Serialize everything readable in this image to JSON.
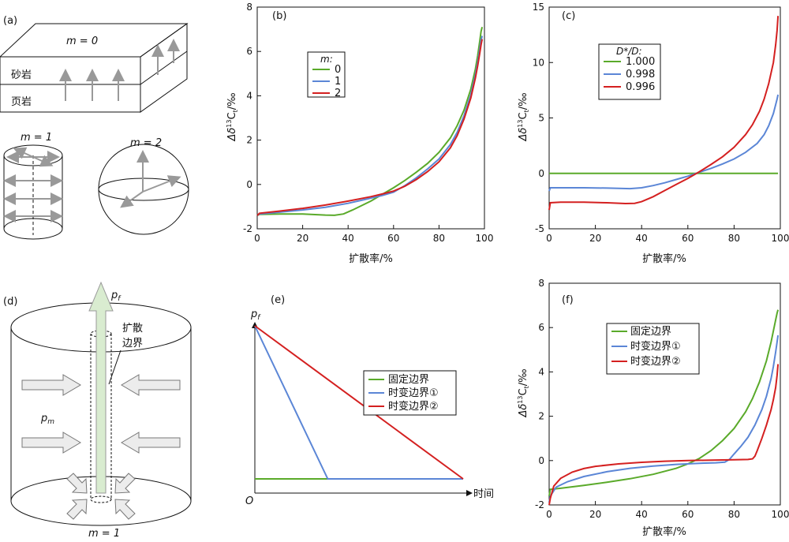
{
  "panels": {
    "a": {
      "label": "(a)",
      "m0": "m = 0",
      "m1": "m = 1",
      "m2": "m = 2",
      "sandstone": "砂岩",
      "shale": "页岩"
    },
    "b": {
      "label": "(b)",
      "ylabel_sym": "Δδ",
      "ylabel_sup": "13",
      "ylabel_c": "C",
      "ylabel_sub": "t",
      "ylabel_unit": "/‰",
      "xlabel": "扩散率/%",
      "legend_title": "m:"
    },
    "c": {
      "label": "(c)",
      "ylabel_sym": "Δδ",
      "ylabel_sup": "13",
      "ylabel_c": "C",
      "ylabel_sub": "t",
      "ylabel_unit": "/‰",
      "xlabel": "扩散率/%",
      "legend_title": "D*/D:"
    },
    "d": {
      "label": "(d)",
      "pf": "p",
      "pf_sub": "f",
      "pm": "p",
      "pm_sub": "m",
      "boundary1": "扩散",
      "boundary2": "边界",
      "m1": "m = 1"
    },
    "e": {
      "label": "(e)",
      "ylabel": "p",
      "ylabel_sub": "f",
      "xlabel": "时间",
      "origin": "O"
    },
    "f": {
      "label": "(f)",
      "ylabel_sym": "Δδ",
      "ylabel_sup": "13",
      "ylabel_c": "C",
      "ylabel_sub": "t",
      "ylabel_unit": "/‰",
      "xlabel": "扩散率/%"
    }
  },
  "colors": {
    "green": "#5aaa2a",
    "blue": "#5b86d6",
    "red": "#d42020"
  },
  "chart_data": [
    {
      "id": "b",
      "type": "line",
      "xlabel": "扩散率/%",
      "ylabel": "Δδ13Ct/‰",
      "xlim": [
        0,
        100
      ],
      "ylim": [
        -2,
        8
      ],
      "xticks": [
        0,
        20,
        40,
        60,
        80,
        100
      ],
      "yticks": [
        -2,
        0,
        2,
        4,
        6,
        8
      ],
      "legend_title": "m:",
      "series": [
        {
          "name": "0",
          "color": "#5aaa2a",
          "x": [
            0,
            1,
            10,
            20,
            30,
            34,
            38,
            42,
            46,
            50,
            55,
            60,
            65,
            70,
            75,
            80,
            85,
            88,
            91,
            94,
            96,
            97,
            98,
            98.5,
            99
          ],
          "y": [
            -1.4,
            -1.35,
            -1.33,
            -1.33,
            -1.38,
            -1.39,
            -1.33,
            -1.15,
            -0.95,
            -0.75,
            -0.45,
            -0.15,
            0.18,
            0.55,
            0.95,
            1.45,
            2.1,
            2.65,
            3.35,
            4.3,
            5.2,
            5.8,
            6.5,
            6.9,
            7.1
          ]
        },
        {
          "name": "1",
          "color": "#5b86d6",
          "x": [
            0,
            1,
            10,
            20,
            30,
            40,
            50,
            55,
            60,
            65,
            70,
            75,
            80,
            85,
            88,
            91,
            94,
            96,
            97,
            98,
            98.5,
            99
          ],
          "y": [
            -1.4,
            -1.33,
            -1.25,
            -1.15,
            -1.03,
            -0.85,
            -0.62,
            -0.5,
            -0.35,
            -0.05,
            0.3,
            0.7,
            1.15,
            1.8,
            2.35,
            3.1,
            4.05,
            4.95,
            5.5,
            6.15,
            6.5,
            6.7
          ]
        },
        {
          "name": "2",
          "color": "#d42020",
          "x": [
            0,
            1,
            10,
            20,
            30,
            40,
            50,
            55,
            60,
            65,
            70,
            75,
            80,
            85,
            88,
            91,
            94,
            96,
            97,
            98,
            98.5,
            99
          ],
          "y": [
            -1.4,
            -1.3,
            -1.2,
            -1.08,
            -0.93,
            -0.75,
            -0.55,
            -0.43,
            -0.3,
            -0.08,
            0.22,
            0.58,
            1.02,
            1.65,
            2.2,
            2.95,
            3.9,
            4.8,
            5.35,
            5.95,
            6.3,
            6.55
          ]
        }
      ]
    },
    {
      "id": "c",
      "type": "line",
      "xlabel": "扩散率/%",
      "ylabel": "Δδ13Ct/‰",
      "xlim": [
        0,
        100
      ],
      "ylim": [
        -5,
        15
      ],
      "xticks": [
        0,
        20,
        40,
        60,
        80,
        100
      ],
      "yticks": [
        -5,
        0,
        5,
        10,
        15
      ],
      "legend_title": "D*/D:",
      "series": [
        {
          "name": "1.000",
          "color": "#5aaa2a",
          "x": [
            0,
            99
          ],
          "y": [
            0,
            0
          ]
        },
        {
          "name": "0.998",
          "color": "#5b86d6",
          "x": [
            0,
            0.5,
            5,
            15,
            25,
            35,
            40,
            45,
            50,
            55,
            60,
            65,
            70,
            75,
            80,
            85,
            90,
            93,
            95,
            97,
            98,
            98.6,
            99
          ],
          "y": [
            -1.6,
            -1.3,
            -1.3,
            -1.3,
            -1.33,
            -1.38,
            -1.3,
            -1.1,
            -0.85,
            -0.55,
            -0.25,
            0.1,
            0.45,
            0.85,
            1.3,
            1.9,
            2.7,
            3.5,
            4.3,
            5.4,
            6.2,
            6.7,
            7.1
          ]
        },
        {
          "name": "0.996",
          "color": "#d42020",
          "x": [
            0,
            0.5,
            5,
            15,
            25,
            33,
            37,
            40,
            45,
            50,
            55,
            60,
            65,
            70,
            75,
            80,
            85,
            88,
            91,
            93,
            95,
            97,
            98,
            98.6,
            99
          ],
          "y": [
            -3.3,
            -2.65,
            -2.6,
            -2.6,
            -2.65,
            -2.72,
            -2.7,
            -2.55,
            -2.1,
            -1.55,
            -1.0,
            -0.45,
            0.15,
            0.8,
            1.5,
            2.35,
            3.5,
            4.4,
            5.6,
            6.7,
            8.1,
            10.0,
            11.6,
            12.9,
            14.2
          ]
        }
      ]
    },
    {
      "id": "e",
      "type": "line",
      "xlabel": "时间",
      "ylabel": "pf",
      "series": [
        {
          "name": "固定边界",
          "color": "#5aaa2a",
          "x": [
            0,
            1
          ],
          "y": [
            0.1,
            0.1
          ]
        },
        {
          "name": "时变边界①",
          "color": "#5b86d6",
          "x": [
            0,
            0.35,
            1
          ],
          "y": [
            1,
            0.1,
            0.1
          ]
        },
        {
          "name": "时变边界②",
          "color": "#d42020",
          "x": [
            0,
            1
          ],
          "y": [
            1,
            0.1
          ]
        }
      ]
    },
    {
      "id": "f",
      "type": "line",
      "xlabel": "扩散率/%",
      "ylabel": "Δδ13Ct/‰",
      "xlim": [
        0,
        100
      ],
      "ylim": [
        -2,
        8
      ],
      "xticks": [
        0,
        20,
        40,
        60,
        80,
        100
      ],
      "yticks": [
        -2,
        0,
        2,
        4,
        6,
        8
      ],
      "series": [
        {
          "name": "固定边界",
          "color": "#5aaa2a",
          "x": [
            0,
            0.5,
            5,
            15,
            25,
            35,
            45,
            55,
            60,
            65,
            70,
            75,
            80,
            85,
            88,
            91,
            94,
            96,
            97,
            98,
            98.6,
            99
          ],
          "y": [
            -1.6,
            -1.3,
            -1.25,
            -1.12,
            -0.98,
            -0.82,
            -0.62,
            -0.35,
            -0.15,
            0.1,
            0.45,
            0.9,
            1.45,
            2.2,
            2.8,
            3.55,
            4.5,
            5.35,
            5.85,
            6.35,
            6.65,
            6.8
          ]
        },
        {
          "name": "时变边界①",
          "color": "#5b86d6",
          "x": [
            0,
            0.5,
            3,
            8,
            15,
            25,
            35,
            45,
            55,
            65,
            72,
            76,
            78,
            80,
            83,
            86,
            89,
            92,
            94,
            96,
            97,
            98,
            98.6,
            99
          ],
          "y": [
            -1.9,
            -1.6,
            -1.2,
            -0.95,
            -0.72,
            -0.5,
            -0.35,
            -0.25,
            -0.17,
            -0.12,
            -0.1,
            -0.07,
            0.05,
            0.3,
            0.65,
            1.05,
            1.6,
            2.3,
            2.9,
            3.7,
            4.25,
            4.9,
            5.35,
            5.65
          ]
        },
        {
          "name": "时变边界②",
          "color": "#d42020",
          "x": [
            0,
            0.5,
            2,
            5,
            10,
            15,
            20,
            30,
            40,
            50,
            60,
            70,
            80,
            86,
            88,
            89,
            90,
            92,
            94,
            96,
            97,
            98,
            98.6,
            99
          ],
          "y": [
            -2,
            -1.7,
            -1.15,
            -0.8,
            -0.52,
            -0.36,
            -0.26,
            -0.15,
            -0.08,
            -0.03,
            0.0,
            0.02,
            0.04,
            0.05,
            0.08,
            0.2,
            0.45,
            1.0,
            1.6,
            2.3,
            2.75,
            3.3,
            3.85,
            4.35
          ]
        }
      ]
    }
  ]
}
